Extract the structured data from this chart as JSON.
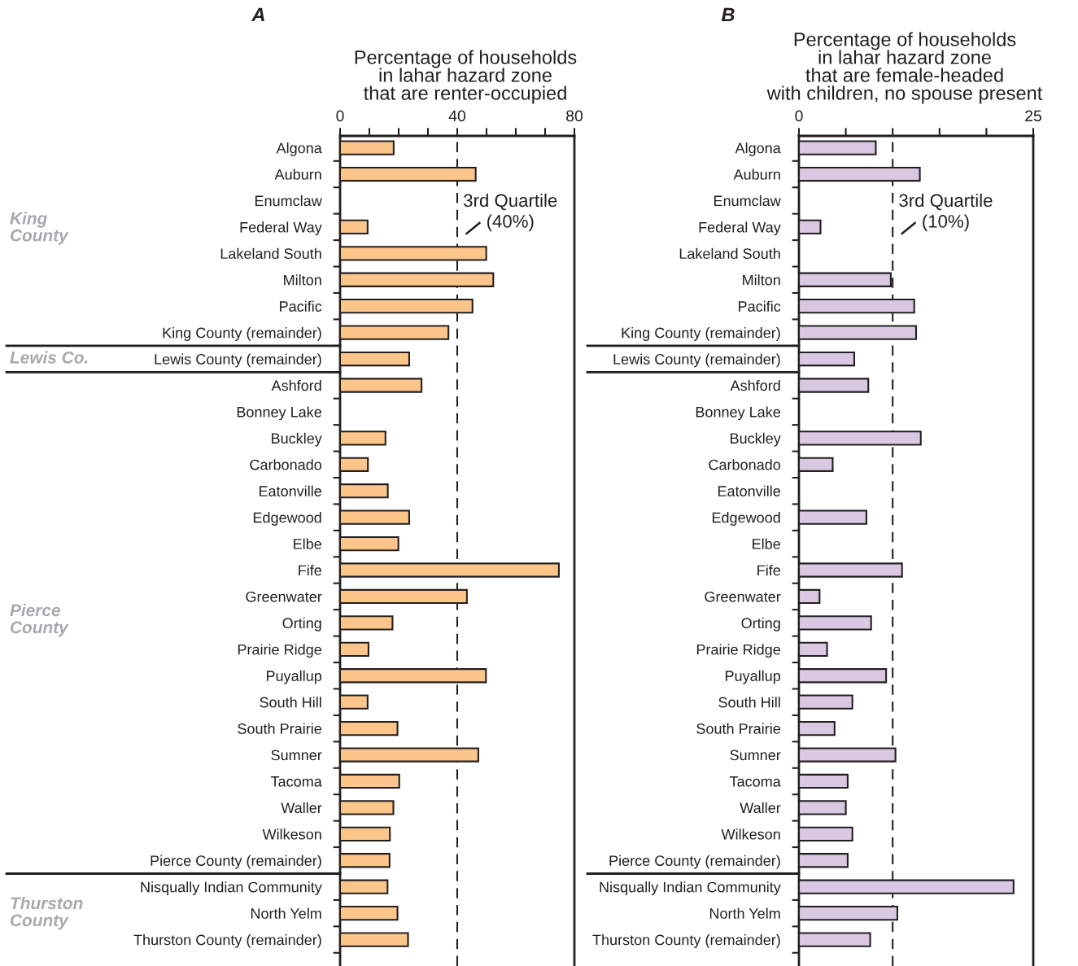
{
  "chart_data": [
    {
      "type": "bar",
      "orientation": "horizontal",
      "title": "Percentage of households\nin lahar hazard zone\nthat are renter-occupied",
      "categories": [
        "Algona",
        "Auburn",
        "Enumclaw",
        "Federal Way",
        "Lakeland South",
        "Milton",
        "Pacific",
        "King County (remainder)",
        "Lewis County (remainder)",
        "Ashford",
        "Bonney Lake",
        "Buckley",
        "Carbonado",
        "Eatonville",
        "Edgewood",
        "Elbe",
        "Fife",
        "Greenwater",
        "Orting",
        "Prairie Ridge",
        "Puyallup",
        "South Hill",
        "South Prairie",
        "Sumner",
        "Tacoma",
        "Waller",
        "Wilkeson",
        "Pierce County (remainder)",
        "Nisqually Indian Community",
        "North Yelm",
        "Thurston County (remainder)"
      ],
      "series": [
        {
          "color": "#fcc68b",
          "values": [
            18.3,
            46.3,
            null,
            9.4,
            49.9,
            52.3,
            45.2,
            37.0,
            23.6,
            27.8,
            null,
            15.5,
            9.5,
            16.3,
            23.6,
            19.9,
            74.7,
            43.3,
            17.9,
            9.7,
            49.8,
            9.4,
            19.6,
            47.2,
            20.2,
            18.2,
            17.0,
            16.9,
            16.2,
            19.6,
            23.2
          ]
        }
      ],
      "xlim": [
        0,
        80
      ],
      "xticks": [
        0,
        {
          "value": 10,
          "label": null
        },
        {
          "value": 20,
          "label": null
        },
        {
          "value": 30,
          "label": null
        },
        40,
        {
          "value": 50,
          "label": null
        },
        {
          "value": 60,
          "label": null
        },
        {
          "value": 70,
          "label": null
        },
        80
      ],
      "ref_lines": [
        {
          "axis": "x",
          "value": 40,
          "label": "3rd Quartile\n(40%)",
          "line_style": "dashed",
          "color": "#231f20"
        }
      ],
      "annotations": [
        "A",
        "King\nCounty",
        "Lewis Co.",
        "Pierce\nCounty",
        "Thurston\nCounty"
      ],
      "grid": false,
      "legend": false
    },
    {
      "type": "bar",
      "orientation": "horizontal",
      "title": "Percentage of households\nin lahar hazard zone\nthat are female-headed\nwith children, no spouse present",
      "categories": [
        "Algona",
        "Auburn",
        "Enumclaw",
        "Federal Way",
        "Lakeland South",
        "Milton",
        "Pacific",
        "King County (remainder)",
        "Lewis County (remainder)",
        "Ashford",
        "Bonney Lake",
        "Buckley",
        "Carbonado",
        "Eatonville",
        "Edgewood",
        "Elbe",
        "Fife",
        "Greenwater",
        "Orting",
        "Prairie Ridge",
        "Puyallup",
        "South Hill",
        "South Prairie",
        "Sumner",
        "Tacoma",
        "Waller",
        "Wilkeson",
        "Pierce County (remainder)",
        "Nisqually Indian Community",
        "North Yelm",
        "Thurston County (remainder)"
      ],
      "series": [
        {
          "color": "#dac7e1",
          "values": [
            8.2,
            12.9,
            null,
            2.3,
            null,
            9.8,
            12.3,
            12.5,
            5.9,
            7.4,
            null,
            13.0,
            3.6,
            null,
            7.2,
            null,
            11.0,
            2.2,
            7.7,
            3.0,
            9.3,
            5.7,
            3.8,
            10.3,
            5.2,
            5.0,
            5.7,
            5.2,
            22.9,
            10.5,
            7.6
          ]
        }
      ],
      "xlim": [
        0,
        25
      ],
      "xticks": [
        0,
        {
          "value": 5,
          "label": null
        },
        {
          "value": 10,
          "label": null
        },
        {
          "value": 15,
          "label": null
        },
        {
          "value": 20,
          "label": null
        },
        25
      ],
      "ref_lines": [
        {
          "axis": "x",
          "value": 10,
          "label": "3rd Quartile\n(10%)",
          "line_style": "dashed",
          "color": "#231f20"
        }
      ],
      "annotations": [
        "B"
      ],
      "grid": false,
      "legend": false
    }
  ]
}
